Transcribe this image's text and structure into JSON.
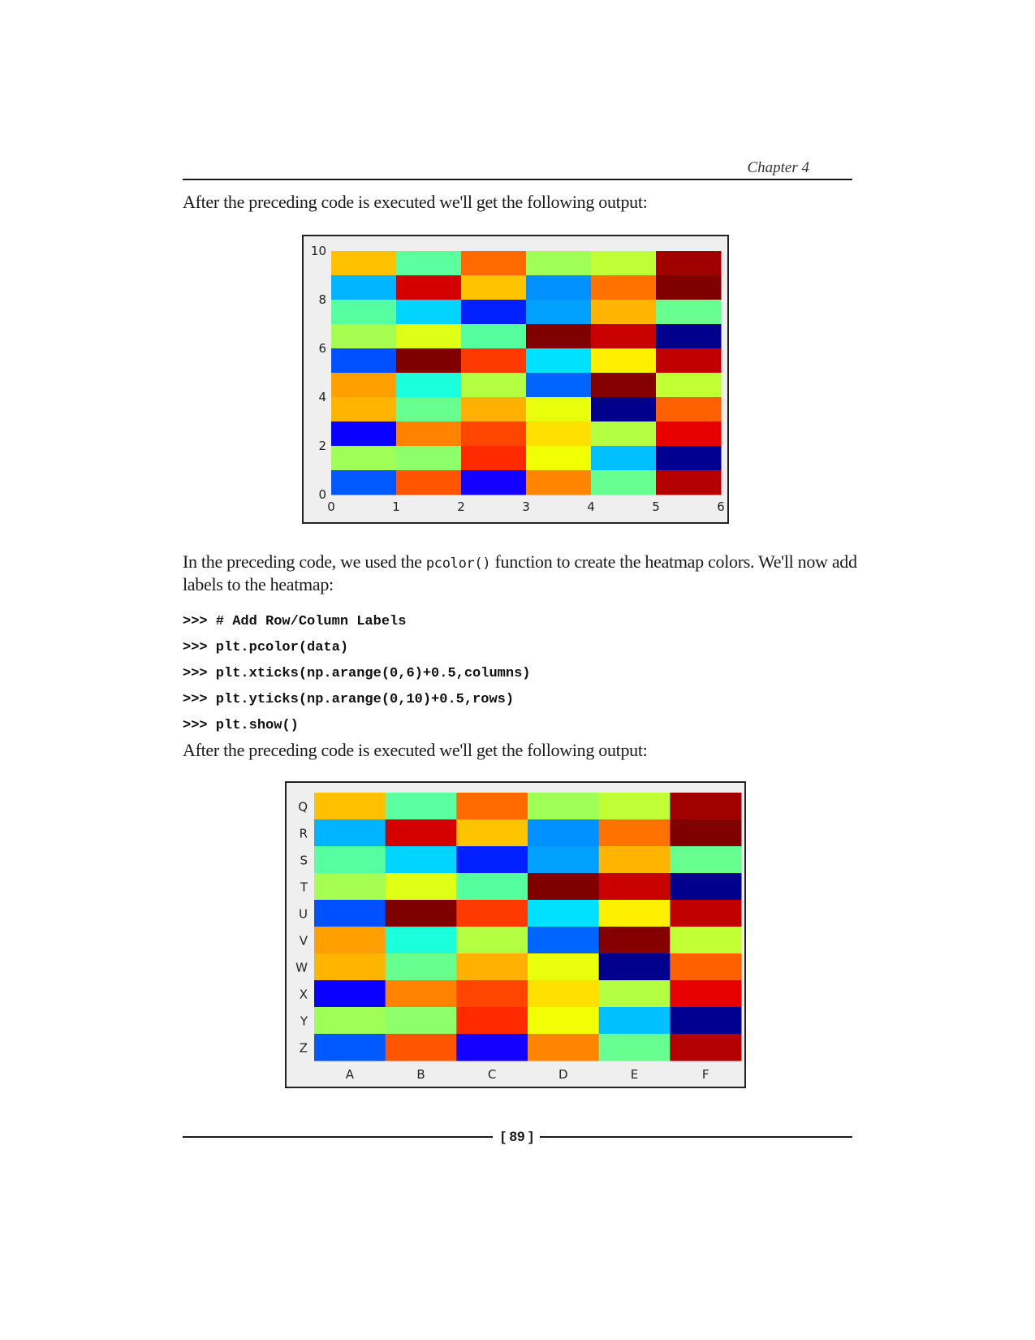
{
  "header": {
    "chapter": "Chapter 4"
  },
  "paragraphs": {
    "p1": "After the preceding code is executed we'll get the following output:",
    "p2_before_code": "In the preceding code, we used the ",
    "p2_code": "pcolor()",
    "p2_after_code": " function to create the heatmap colors. We'll now add labels to the heatmap:",
    "p3": "After the preceding code is executed we'll get the following output:"
  },
  "code_lines": [
    ">>> # Add Row/Column Labels",
    ">>> plt.pcolor(data)",
    ">>> plt.xticks(np.arange(0,6)+0.5,columns)",
    ">>> plt.yticks(np.arange(0,10)+0.5,rows)",
    ">>> plt.show()"
  ],
  "footer": {
    "page_number": "[ 89 ]"
  },
  "chart_data": [
    {
      "type": "heatmap",
      "title": "",
      "xlabel": "",
      "ylabel": "",
      "xlim": [
        0,
        6
      ],
      "ylim": [
        0,
        10
      ],
      "x_ticks": [
        "0",
        "1",
        "2",
        "3",
        "4",
        "5",
        "6"
      ],
      "y_ticks": [
        "0",
        "2",
        "4",
        "6",
        "8",
        "10"
      ],
      "colormap": "jet",
      "rows_top_to_bottom": [
        [
          "#ffc000",
          "#5cffa0",
          "#ff6a00",
          "#a0ff56",
          "#c0ff36",
          "#a00000"
        ],
        [
          "#00b4ff",
          "#d40000",
          "#ffc400",
          "#0090ff",
          "#ff7200",
          "#800000"
        ],
        [
          "#56ffa0",
          "#00d4ff",
          "#0020ff",
          "#00a0ff",
          "#ffb400",
          "#66ff90"
        ],
        [
          "#a6ff50",
          "#e0ff16",
          "#56ff9e",
          "#800000",
          "#c80000",
          "#00008c"
        ],
        [
          "#0050ff",
          "#800000",
          "#ff3a00",
          "#00e0ff",
          "#fff000",
          "#c00000"
        ],
        [
          "#ffa000",
          "#1affdc",
          "#b4ff42",
          "#0064ff",
          "#840000",
          "#c2ff34"
        ],
        [
          "#ffb400",
          "#66ff90",
          "#ffb000",
          "#eaff0c",
          "#00008c",
          "#ff6000"
        ],
        [
          "#0a00ff",
          "#ff8200",
          "#ff4600",
          "#ffe000",
          "#b4ff42",
          "#e80000"
        ],
        [
          "#a0ff56",
          "#8cff6a",
          "#ff2a00",
          "#f2ff04",
          "#00c0ff",
          "#000090"
        ],
        [
          "#0058ff",
          "#ff5400",
          "#1400ff",
          "#ff8400",
          "#66ff90",
          "#b40000"
        ]
      ]
    },
    {
      "type": "heatmap",
      "title": "",
      "xlabel": "",
      "ylabel": "",
      "columns": [
        "A",
        "B",
        "C",
        "D",
        "E",
        "F"
      ],
      "rows_top_to_bottom": [
        "Q",
        "R",
        "S",
        "T",
        "U",
        "V",
        "W",
        "X",
        "Y",
        "Z"
      ],
      "colormap": "jet",
      "cell_colors": "same as first heatmap"
    }
  ]
}
